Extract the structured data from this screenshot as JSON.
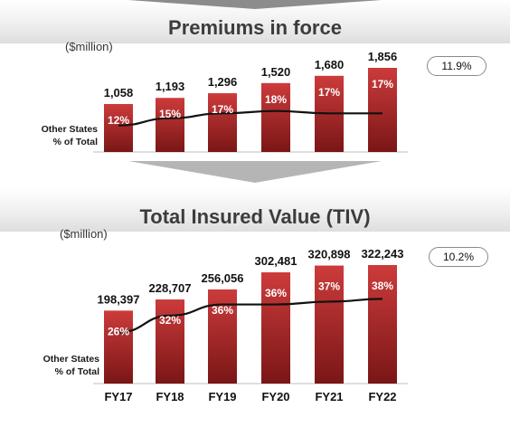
{
  "chart_data": [
    {
      "type": "bar",
      "title": "Premiums in force",
      "units_label": "($million)",
      "categories": [
        "FY17",
        "FY18",
        "FY19",
        "FY20",
        "FY21",
        "FY22"
      ],
      "series": [
        {
          "values": [
            1058,
            1193,
            1296,
            1520,
            1680,
            1856
          ],
          "value_labels": [
            "1,058",
            "1,193",
            "1,296",
            "1,520",
            "1,680",
            "1,856"
          ]
        },
        {
          "name": "Other States % of Total",
          "type": "line",
          "values": [
            12,
            15,
            17,
            18,
            17,
            17
          ],
          "value_labels": [
            "12%",
            "15%",
            "17%",
            "18%",
            "17%",
            "17%"
          ]
        }
      ],
      "line_caption": [
        "Other States",
        "% of Total"
      ],
      "cagr_label": "11.9%",
      "ylim": [
        0,
        1856
      ]
    },
    {
      "type": "bar",
      "title": "Total Insured Value (TIV)",
      "units_label": "($million)",
      "categories": [
        "FY17",
        "FY18",
        "FY19",
        "FY20",
        "FY21",
        "FY22"
      ],
      "series": [
        {
          "values": [
            198397,
            228707,
            256056,
            302481,
            320898,
            322243
          ],
          "value_labels": [
            "198,397",
            "228,707",
            "256,056",
            "302,481",
            "320,898",
            "322,243"
          ]
        },
        {
          "name": "Other States % of Total",
          "type": "line",
          "values": [
            26,
            32,
            36,
            36,
            37,
            38
          ],
          "value_labels": [
            "26%",
            "32%",
            "36%",
            "36%",
            "37%",
            "38%"
          ]
        }
      ],
      "line_caption": [
        "Other States",
        "% of Total"
      ],
      "cagr_label": "10.2%",
      "ylim": [
        0,
        322243
      ]
    }
  ],
  "colors": {
    "bar_top": "#cc3b3b",
    "bar_bottom": "#7a1616",
    "line": "#111111",
    "title": "#3c3c3c"
  }
}
